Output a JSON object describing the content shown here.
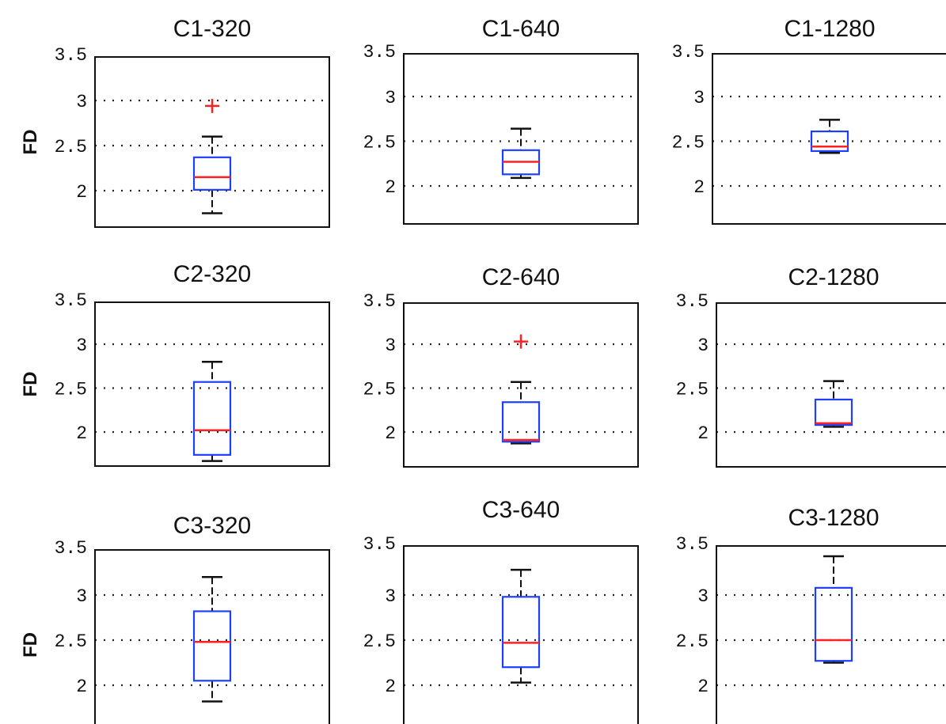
{
  "chart_data": [
    {
      "type": "box",
      "title": "C1-320",
      "ylabel": "FD",
      "yticks": [
        "2",
        "2.5",
        "3",
        "3.5"
      ],
      "ylim": [
        1.6,
        3.5
      ],
      "grid": "horizontal dotted",
      "box": {
        "whisker_low": 1.75,
        "q1": 2.01,
        "median": 2.15,
        "q3": 2.37,
        "whisker_high": 2.6,
        "outliers": [
          2.94
        ]
      }
    },
    {
      "type": "box",
      "title": "C1-640",
      "ylabel": "",
      "yticks": [
        "2",
        "2.5",
        "3",
        "3.5"
      ],
      "ylim": [
        1.6,
        3.5
      ],
      "grid": "horizontal dotted",
      "box": {
        "whisker_low": 2.09,
        "q1": 2.13,
        "median": 2.27,
        "q3": 2.4,
        "whisker_high": 2.64,
        "outliers": []
      }
    },
    {
      "type": "box",
      "title": "C1-1280",
      "ylabel": "",
      "yticks": [
        "2",
        "2.5",
        "3",
        "3.5"
      ],
      "ylim": [
        1.6,
        3.5
      ],
      "grid": "horizontal dotted",
      "box": {
        "whisker_low": 2.37,
        "q1": 2.39,
        "median": 2.44,
        "q3": 2.61,
        "whisker_high": 2.74,
        "outliers": []
      }
    },
    {
      "type": "box",
      "title": "C2-320",
      "ylabel": "FD",
      "yticks": [
        "2",
        "2.5",
        "3",
        "3.5"
      ],
      "ylim": [
        1.6,
        3.5
      ],
      "grid": "horizontal dotted",
      "box": {
        "whisker_low": 1.67,
        "q1": 1.74,
        "median": 2.02,
        "q3": 2.57,
        "whisker_high": 2.8,
        "outliers": []
      }
    },
    {
      "type": "box",
      "title": "C2-640",
      "ylabel": "",
      "yticks": [
        "2",
        "2.5",
        "3",
        "3.5"
      ],
      "ylim": [
        1.6,
        3.5
      ],
      "grid": "horizontal dotted",
      "box": {
        "whisker_low": 1.87,
        "q1": 1.89,
        "median": 1.91,
        "q3": 2.34,
        "whisker_high": 2.57,
        "outliers": [
          3.03
        ]
      }
    },
    {
      "type": "box",
      "title": "C2-1280",
      "ylabel": "",
      "yticks": [
        "2",
        "2.5",
        "3",
        "3.5"
      ],
      "ylim": [
        1.6,
        3.5
      ],
      "grid": "horizontal dotted",
      "box": {
        "whisker_low": 2.06,
        "q1": 2.08,
        "median": 2.1,
        "q3": 2.37,
        "whisker_high": 2.58,
        "outliers": []
      }
    },
    {
      "type": "box",
      "title": "C3-320",
      "ylabel": "FD",
      "yticks": [
        "2",
        "2.5",
        "3",
        "3.5"
      ],
      "ylim": [
        1.6,
        3.5
      ],
      "grid": "horizontal dotted",
      "box": {
        "whisker_low": 1.82,
        "q1": 2.05,
        "median": 2.48,
        "q3": 2.82,
        "whisker_high": 3.2,
        "outliers": []
      }
    },
    {
      "type": "box",
      "title": "C3-640",
      "ylabel": "",
      "yticks": [
        "2",
        "2.5",
        "3",
        "3.5"
      ],
      "ylim": [
        1.6,
        3.5
      ],
      "grid": "horizontal dotted",
      "box": {
        "whisker_low": 2.03,
        "q1": 2.2,
        "median": 2.47,
        "q3": 2.98,
        "whisker_high": 3.28,
        "outliers": []
      }
    },
    {
      "type": "box",
      "title": "C3-1280",
      "ylabel": "",
      "yticks": [
        "2",
        "2.5",
        "3",
        "3.5"
      ],
      "ylim": [
        1.6,
        3.5
      ],
      "grid": "horizontal dotted",
      "box": {
        "whisker_low": 2.25,
        "q1": 2.27,
        "median": 2.5,
        "q3": 3.08,
        "whisker_high": 3.43,
        "outliers": []
      }
    }
  ],
  "colors": {
    "box": "#1f3fff",
    "median": "#ff2020",
    "whisker": "#111111",
    "outlier": "#ff2020",
    "grid": "#222222"
  }
}
